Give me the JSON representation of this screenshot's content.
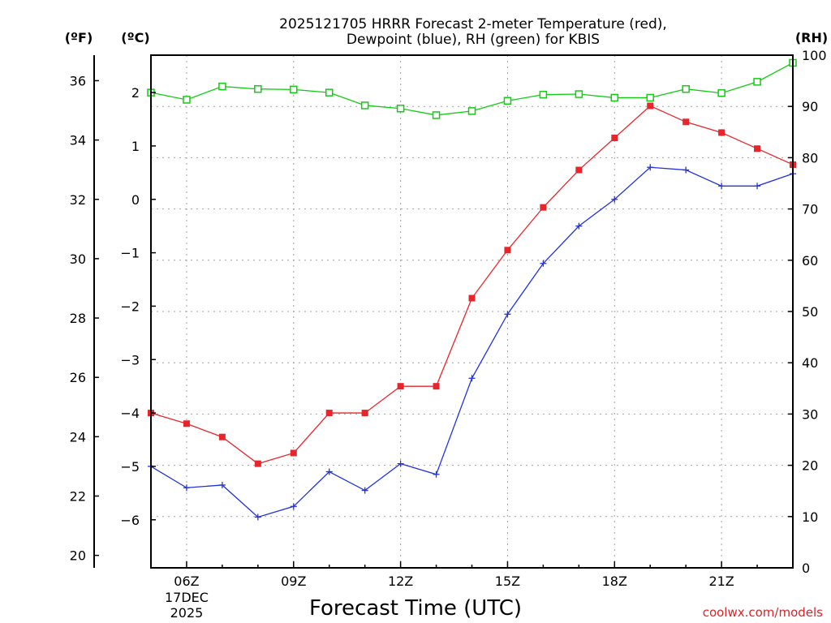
{
  "title_line1": "2025121705 HRRR Forecast 2-meter Temperature (red),",
  "title_line2": "Dewpoint (blue), RH (green) for KBIS",
  "xlabel": "Forecast Time (UTC)",
  "credit": "coolwx.com/models",
  "colors": {
    "temp": "#e8252b",
    "dewpoint": "#2233dd",
    "rh": "#11cc11"
  },
  "chart_data": {
    "type": "line",
    "title": "2025121705 HRRR Forecast 2-meter Temperature (red), Dewpoint (blue), RH (green) for KBIS",
    "xlabel": "Forecast Time (UTC)",
    "x_hours": [
      5,
      6,
      7,
      8,
      9,
      10,
      11,
      12,
      13,
      14,
      15,
      16,
      17,
      18,
      19,
      20,
      21,
      22,
      23
    ],
    "xlim": [
      5,
      23
    ],
    "x_ticks": [
      {
        "hour": 6,
        "label": "06Z",
        "sub1": "17DEC",
        "sub2": "2025"
      },
      {
        "hour": 9,
        "label": "09Z"
      },
      {
        "hour": 12,
        "label": "12Z"
      },
      {
        "hour": 15,
        "label": "15Z"
      },
      {
        "hour": 18,
        "label": "18Z"
      },
      {
        "hour": 21,
        "label": "21Z"
      }
    ],
    "axes": {
      "left_f": {
        "unit": "(ºF)",
        "ticks": [
          20,
          22,
          24,
          26,
          28,
          30,
          32,
          34,
          36
        ]
      },
      "left_c": {
        "unit": "(ºC)",
        "ylim": [
          -6.9,
          2.7
        ],
        "ticks": [
          -6,
          -5,
          -4,
          -3,
          -2,
          -1,
          0,
          1,
          2
        ]
      },
      "right_rh": {
        "unit": "(RH)",
        "ylim": [
          0,
          100
        ],
        "ticks": [
          0,
          10,
          20,
          30,
          40,
          50,
          60,
          70,
          80,
          90,
          100
        ]
      }
    },
    "series": [
      {
        "name": "Temperature (°C)",
        "axis": "left_c",
        "marker": "filled-square",
        "values": [
          -4.0,
          -4.2,
          -4.45,
          -4.95,
          -4.75,
          -4.0,
          -4.0,
          -3.5,
          -3.5,
          -1.85,
          -0.95,
          -0.15,
          0.55,
          1.15,
          1.75,
          1.45,
          1.25,
          0.95,
          0.65
        ]
      },
      {
        "name": "Dewpoint (°C)",
        "axis": "left_c",
        "marker": "plus",
        "values": [
          -5.0,
          -5.4,
          -5.35,
          -5.95,
          -5.75,
          -5.1,
          -5.45,
          -4.95,
          -5.15,
          -3.35,
          -2.15,
          -1.2,
          -0.5,
          0.0,
          0.6,
          0.55,
          0.25,
          0.25,
          0.48
        ]
      },
      {
        "name": "RH (%)",
        "axis": "right_rh",
        "marker": "open-square",
        "values": [
          92.7,
          91.3,
          93.9,
          93.4,
          93.3,
          92.7,
          90.2,
          89.6,
          88.3,
          89.1,
          91.1,
          92.3,
          92.4,
          91.7,
          91.7,
          93.4,
          92.6,
          94.8,
          98.5
        ]
      }
    ]
  }
}
